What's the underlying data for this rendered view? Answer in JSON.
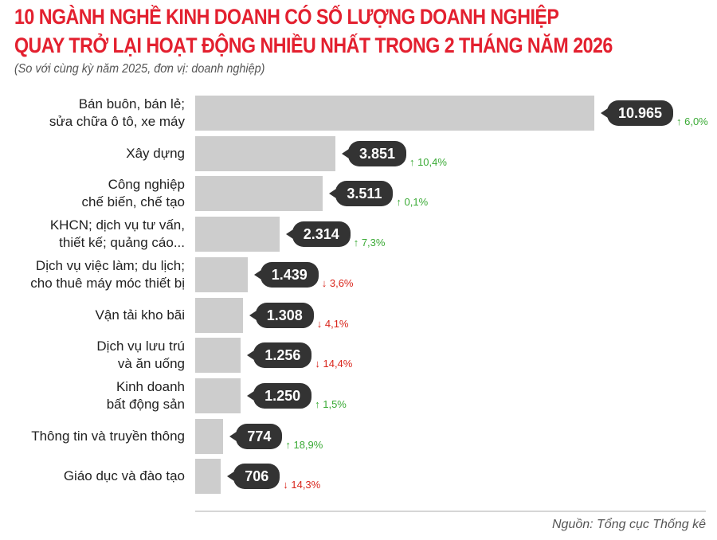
{
  "chart_data": {
    "type": "bar",
    "orientation": "horizontal",
    "title": "10 NGÀNH NGHỀ KINH DOANH CÓ SỐ LƯỢNG DOANH NGHIỆP QUAY TRỞ LẠI HOẠT ĐỘNG NHIỀU NHẤT TRONG 2 THÁNG NĂM 2026",
    "title_lines": [
      "10 NGÀNH NGHỀ KINH DOANH CÓ SỐ LƯỢNG DOANH NGHIỆP",
      "QUAY TRỞ LẠI HOẠT ĐỘNG NHIỀU NHẤT TRONG 2 THÁNG NĂM 2026"
    ],
    "subtitle": "(So với cùng kỳ năm 2025, đơn vị: doanh nghiệp)",
    "source": "Nguồn: Tổng cục Thống kê",
    "categories": [
      "Bán buôn, bán lẻ;\nsửa chữa ô tô, xe máy",
      "Xây dựng",
      "Công nghiệp\nchế biến, chế tạo",
      "KHCN; dịch vụ tư vấn,\nthiết kế; quảng cáo...",
      "Dịch vụ việc làm; du lịch;\ncho thuê máy móc thiết bị",
      "Vận tải kho bãi",
      "Dịch vụ lưu trú\nvà ăn uống",
      "Kinh doanh\nbất động sản",
      "Thông tin và truyền thông",
      "Giáo dục và đào tạo"
    ],
    "values": [
      10965,
      3851,
      3511,
      2314,
      1439,
      1308,
      1256,
      1250,
      774,
      706
    ],
    "value_labels": [
      "10.965",
      "3.851",
      "3.511",
      "2.314",
      "1.439",
      "1.308",
      "1.256",
      "1.250",
      "774",
      "706"
    ],
    "changes": [
      {
        "dir": "up",
        "label": "6,0%"
      },
      {
        "dir": "up",
        "label": "10,4%"
      },
      {
        "dir": "up",
        "label": "0,1%"
      },
      {
        "dir": "up",
        "label": "7,3%"
      },
      {
        "dir": "down",
        "label": "3,6%"
      },
      {
        "dir": "down",
        "label": "4,1%"
      },
      {
        "dir": "down",
        "label": "14,4%"
      },
      {
        "dir": "up",
        "label": "1,5%"
      },
      {
        "dir": "up",
        "label": "18,9%"
      },
      {
        "dir": "down",
        "label": "14,3%"
      }
    ],
    "xlim": [
      0,
      10965
    ],
    "grid": false,
    "colors": {
      "title": "#e3202f",
      "bar": "#cdcdcd",
      "bubble": "#333333",
      "up": "#3aaa35",
      "down": "#d9261c"
    }
  }
}
